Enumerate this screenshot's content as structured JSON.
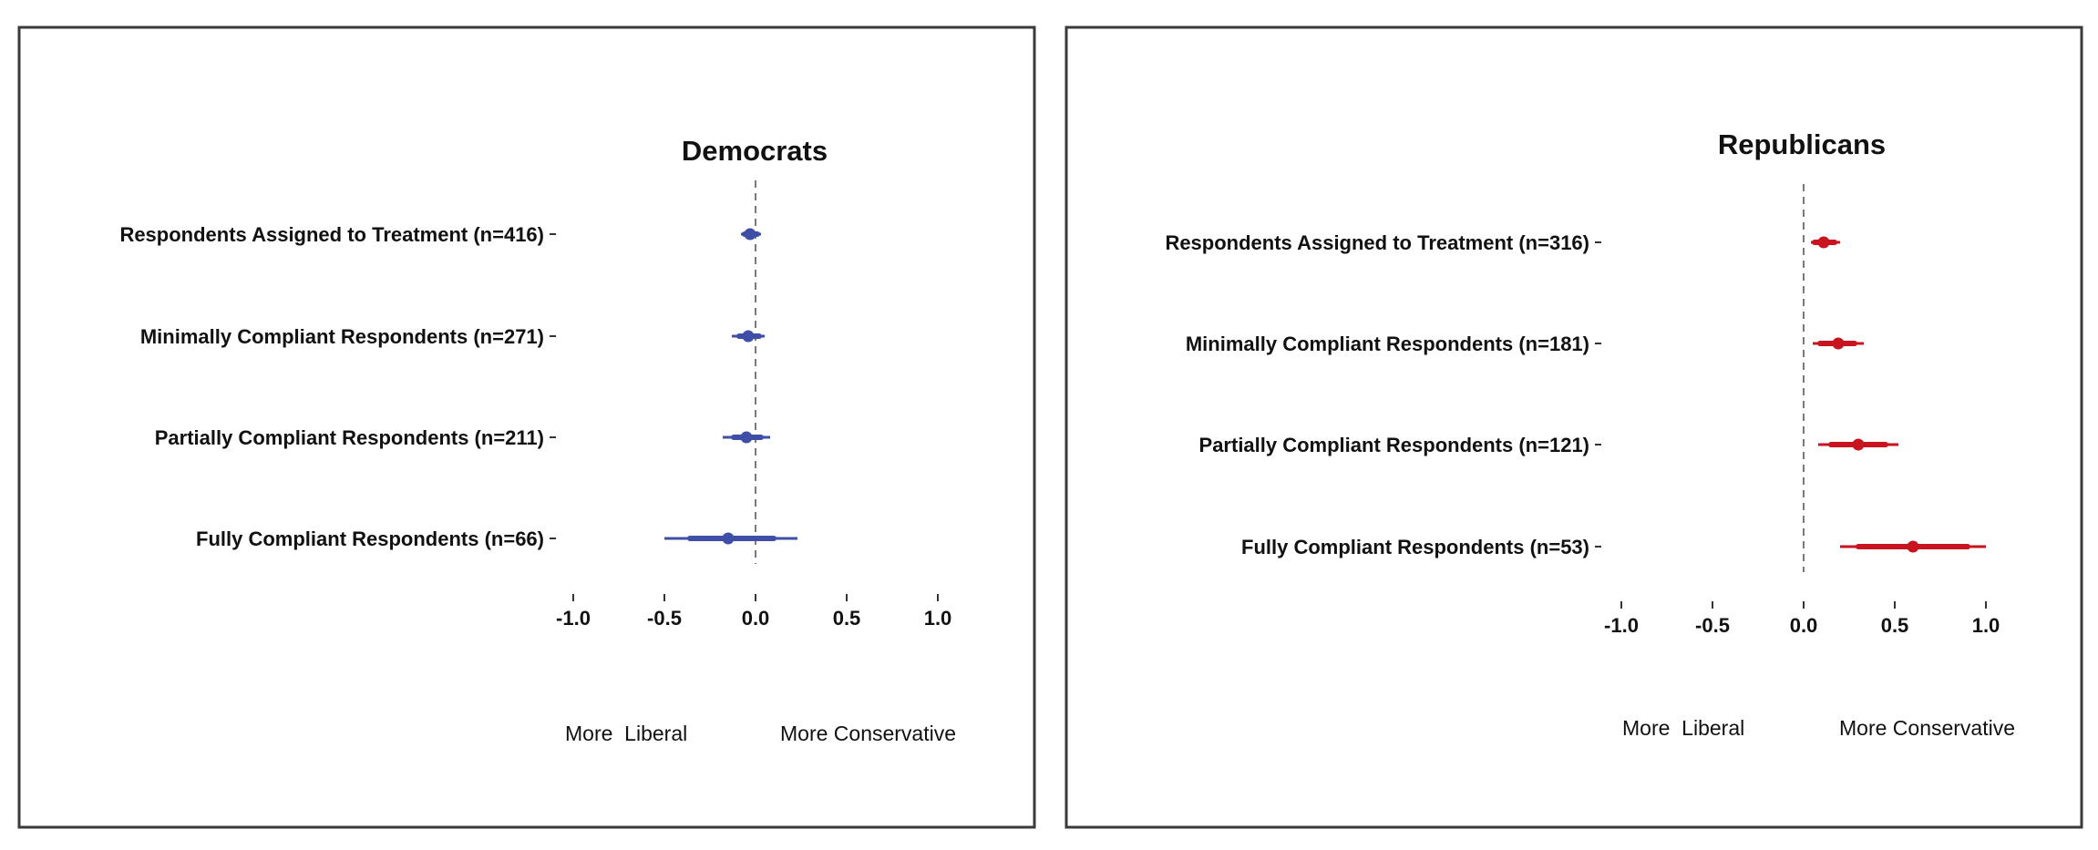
{
  "chart_data": [
    {
      "type": "dot-whisker",
      "title": "Democrats",
      "color": "#3f4fa8",
      "xlim": [
        -1.0,
        1.0
      ],
      "x_ticks": [
        "-1.0",
        "-0.5",
        "0.0",
        "0.5",
        "1.0"
      ],
      "x_tick_values": [
        -1.0,
        -0.5,
        0.0,
        0.5,
        1.0
      ],
      "reference_line": 0.0,
      "direction_labels": {
        "left": "More  Liberal",
        "right": "More Conservative"
      },
      "categories": [
        "Respondents Assigned to Treatment (n=416)",
        "Minimally Compliant Respondents (n=271)",
        "Partially Compliant Respondents (n=211)",
        "Fully Compliant Respondents (n=66)"
      ],
      "estimates": [
        -0.03,
        -0.04,
        -0.05,
        -0.15
      ],
      "ci_thin": [
        [
          -0.08,
          0.03
        ],
        [
          -0.13,
          0.05
        ],
        [
          -0.18,
          0.08
        ],
        [
          -0.5,
          0.23
        ]
      ],
      "ci_thick": [
        [
          -0.06,
          0.01
        ],
        [
          -0.09,
          0.02
        ],
        [
          -0.12,
          0.03
        ],
        [
          -0.36,
          0.1
        ]
      ]
    },
    {
      "type": "dot-whisker",
      "title": "Republicans",
      "color": "#c8141f",
      "xlim": [
        -1.0,
        1.0
      ],
      "x_ticks": [
        "-1.0",
        "-0.5",
        "0.0",
        "0.5",
        "1.0"
      ],
      "x_tick_values": [
        -1.0,
        -0.5,
        0.0,
        0.5,
        1.0
      ],
      "reference_line": 0.0,
      "direction_labels": {
        "left": "More  Liberal",
        "right": "More Conservative"
      },
      "categories": [
        "Respondents Assigned to Treatment (n=316)",
        "Minimally Compliant Respondents (n=181)",
        "Partially Compliant Respondents (n=121)",
        "Fully Compliant Respondents (n=53)"
      ],
      "estimates": [
        0.11,
        0.19,
        0.3,
        0.6
      ],
      "ci_thin": [
        [
          0.04,
          0.2
        ],
        [
          0.05,
          0.33
        ],
        [
          0.08,
          0.52
        ],
        [
          0.2,
          1.0
        ]
      ],
      "ci_thick": [
        [
          0.06,
          0.17
        ],
        [
          0.09,
          0.28
        ],
        [
          0.15,
          0.45
        ],
        [
          0.3,
          0.9
        ]
      ]
    }
  ]
}
